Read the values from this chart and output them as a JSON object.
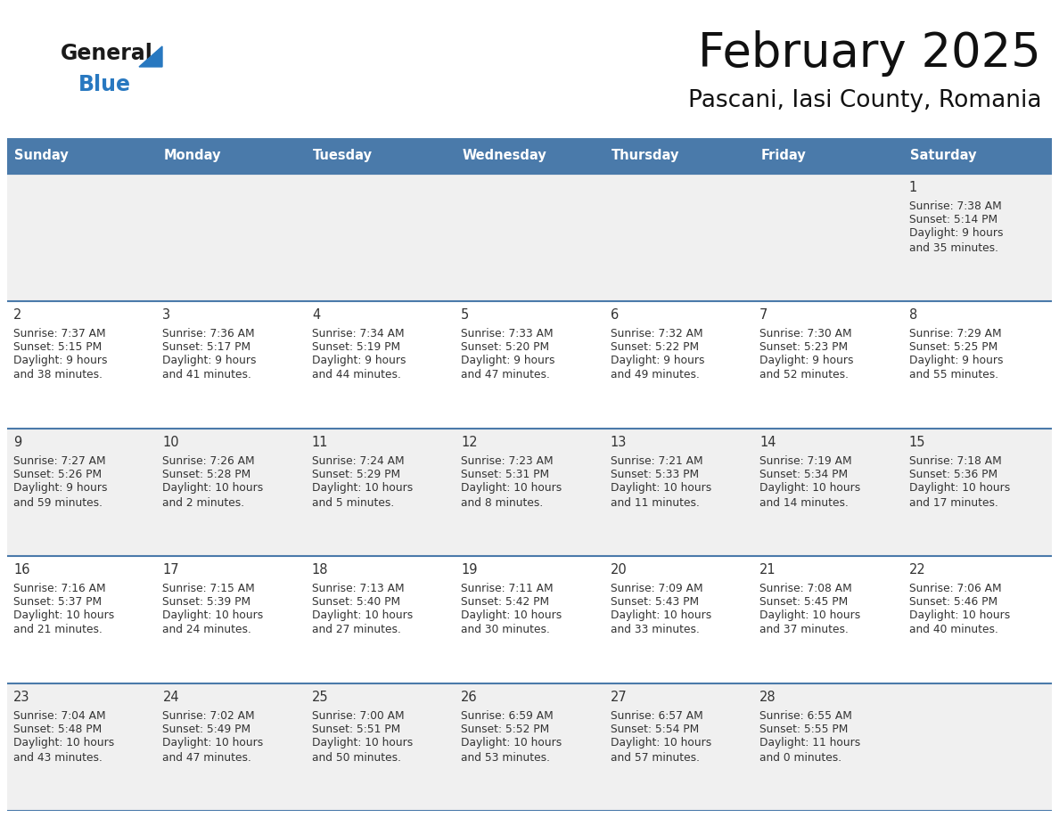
{
  "title": "February 2025",
  "subtitle": "Pascani, Iasi County, Romania",
  "header_color": "#4a7aaa",
  "header_text_color": "#ffffff",
  "day_names": [
    "Sunday",
    "Monday",
    "Tuesday",
    "Wednesday",
    "Thursday",
    "Friday",
    "Saturday"
  ],
  "background_color": "#ffffff",
  "cell_bg_row0": "#f0f0f0",
  "cell_bg_row1": "#ffffff",
  "cell_bg_row2": "#f0f0f0",
  "cell_bg_row3": "#ffffff",
  "cell_bg_row4": "#f0f0f0",
  "grid_color": "#4a7aaa",
  "text_color": "#333333",
  "logo_general_color": "#1a1a1a",
  "logo_blue_color": "#2878c0",
  "days": [
    {
      "date": 1,
      "col": 6,
      "row": 0,
      "sunrise": "7:38 AM",
      "sunset": "5:14 PM",
      "daylight": "9 hours\nand 35 minutes."
    },
    {
      "date": 2,
      "col": 0,
      "row": 1,
      "sunrise": "7:37 AM",
      "sunset": "5:15 PM",
      "daylight": "9 hours\nand 38 minutes."
    },
    {
      "date": 3,
      "col": 1,
      "row": 1,
      "sunrise": "7:36 AM",
      "sunset": "5:17 PM",
      "daylight": "9 hours\nand 41 minutes."
    },
    {
      "date": 4,
      "col": 2,
      "row": 1,
      "sunrise": "7:34 AM",
      "sunset": "5:19 PM",
      "daylight": "9 hours\nand 44 minutes."
    },
    {
      "date": 5,
      "col": 3,
      "row": 1,
      "sunrise": "7:33 AM",
      "sunset": "5:20 PM",
      "daylight": "9 hours\nand 47 minutes."
    },
    {
      "date": 6,
      "col": 4,
      "row": 1,
      "sunrise": "7:32 AM",
      "sunset": "5:22 PM",
      "daylight": "9 hours\nand 49 minutes."
    },
    {
      "date": 7,
      "col": 5,
      "row": 1,
      "sunrise": "7:30 AM",
      "sunset": "5:23 PM",
      "daylight": "9 hours\nand 52 minutes."
    },
    {
      "date": 8,
      "col": 6,
      "row": 1,
      "sunrise": "7:29 AM",
      "sunset": "5:25 PM",
      "daylight": "9 hours\nand 55 minutes."
    },
    {
      "date": 9,
      "col": 0,
      "row": 2,
      "sunrise": "7:27 AM",
      "sunset": "5:26 PM",
      "daylight": "9 hours\nand 59 minutes."
    },
    {
      "date": 10,
      "col": 1,
      "row": 2,
      "sunrise": "7:26 AM",
      "sunset": "5:28 PM",
      "daylight": "10 hours\nand 2 minutes."
    },
    {
      "date": 11,
      "col": 2,
      "row": 2,
      "sunrise": "7:24 AM",
      "sunset": "5:29 PM",
      "daylight": "10 hours\nand 5 minutes."
    },
    {
      "date": 12,
      "col": 3,
      "row": 2,
      "sunrise": "7:23 AM",
      "sunset": "5:31 PM",
      "daylight": "10 hours\nand 8 minutes."
    },
    {
      "date": 13,
      "col": 4,
      "row": 2,
      "sunrise": "7:21 AM",
      "sunset": "5:33 PM",
      "daylight": "10 hours\nand 11 minutes."
    },
    {
      "date": 14,
      "col": 5,
      "row": 2,
      "sunrise": "7:19 AM",
      "sunset": "5:34 PM",
      "daylight": "10 hours\nand 14 minutes."
    },
    {
      "date": 15,
      "col": 6,
      "row": 2,
      "sunrise": "7:18 AM",
      "sunset": "5:36 PM",
      "daylight": "10 hours\nand 17 minutes."
    },
    {
      "date": 16,
      "col": 0,
      "row": 3,
      "sunrise": "7:16 AM",
      "sunset": "5:37 PM",
      "daylight": "10 hours\nand 21 minutes."
    },
    {
      "date": 17,
      "col": 1,
      "row": 3,
      "sunrise": "7:15 AM",
      "sunset": "5:39 PM",
      "daylight": "10 hours\nand 24 minutes."
    },
    {
      "date": 18,
      "col": 2,
      "row": 3,
      "sunrise": "7:13 AM",
      "sunset": "5:40 PM",
      "daylight": "10 hours\nand 27 minutes."
    },
    {
      "date": 19,
      "col": 3,
      "row": 3,
      "sunrise": "7:11 AM",
      "sunset": "5:42 PM",
      "daylight": "10 hours\nand 30 minutes."
    },
    {
      "date": 20,
      "col": 4,
      "row": 3,
      "sunrise": "7:09 AM",
      "sunset": "5:43 PM",
      "daylight": "10 hours\nand 33 minutes."
    },
    {
      "date": 21,
      "col": 5,
      "row": 3,
      "sunrise": "7:08 AM",
      "sunset": "5:45 PM",
      "daylight": "10 hours\nand 37 minutes."
    },
    {
      "date": 22,
      "col": 6,
      "row": 3,
      "sunrise": "7:06 AM",
      "sunset": "5:46 PM",
      "daylight": "10 hours\nand 40 minutes."
    },
    {
      "date": 23,
      "col": 0,
      "row": 4,
      "sunrise": "7:04 AM",
      "sunset": "5:48 PM",
      "daylight": "10 hours\nand 43 minutes."
    },
    {
      "date": 24,
      "col": 1,
      "row": 4,
      "sunrise": "7:02 AM",
      "sunset": "5:49 PM",
      "daylight": "10 hours\nand 47 minutes."
    },
    {
      "date": 25,
      "col": 2,
      "row": 4,
      "sunrise": "7:00 AM",
      "sunset": "5:51 PM",
      "daylight": "10 hours\nand 50 minutes."
    },
    {
      "date": 26,
      "col": 3,
      "row": 4,
      "sunrise": "6:59 AM",
      "sunset": "5:52 PM",
      "daylight": "10 hours\nand 53 minutes."
    },
    {
      "date": 27,
      "col": 4,
      "row": 4,
      "sunrise": "6:57 AM",
      "sunset": "5:54 PM",
      "daylight": "10 hours\nand 57 minutes."
    },
    {
      "date": 28,
      "col": 5,
      "row": 4,
      "sunrise": "6:55 AM",
      "sunset": "5:55 PM",
      "daylight": "11 hours\nand 0 minutes."
    }
  ],
  "num_rows": 5,
  "num_cols": 7
}
